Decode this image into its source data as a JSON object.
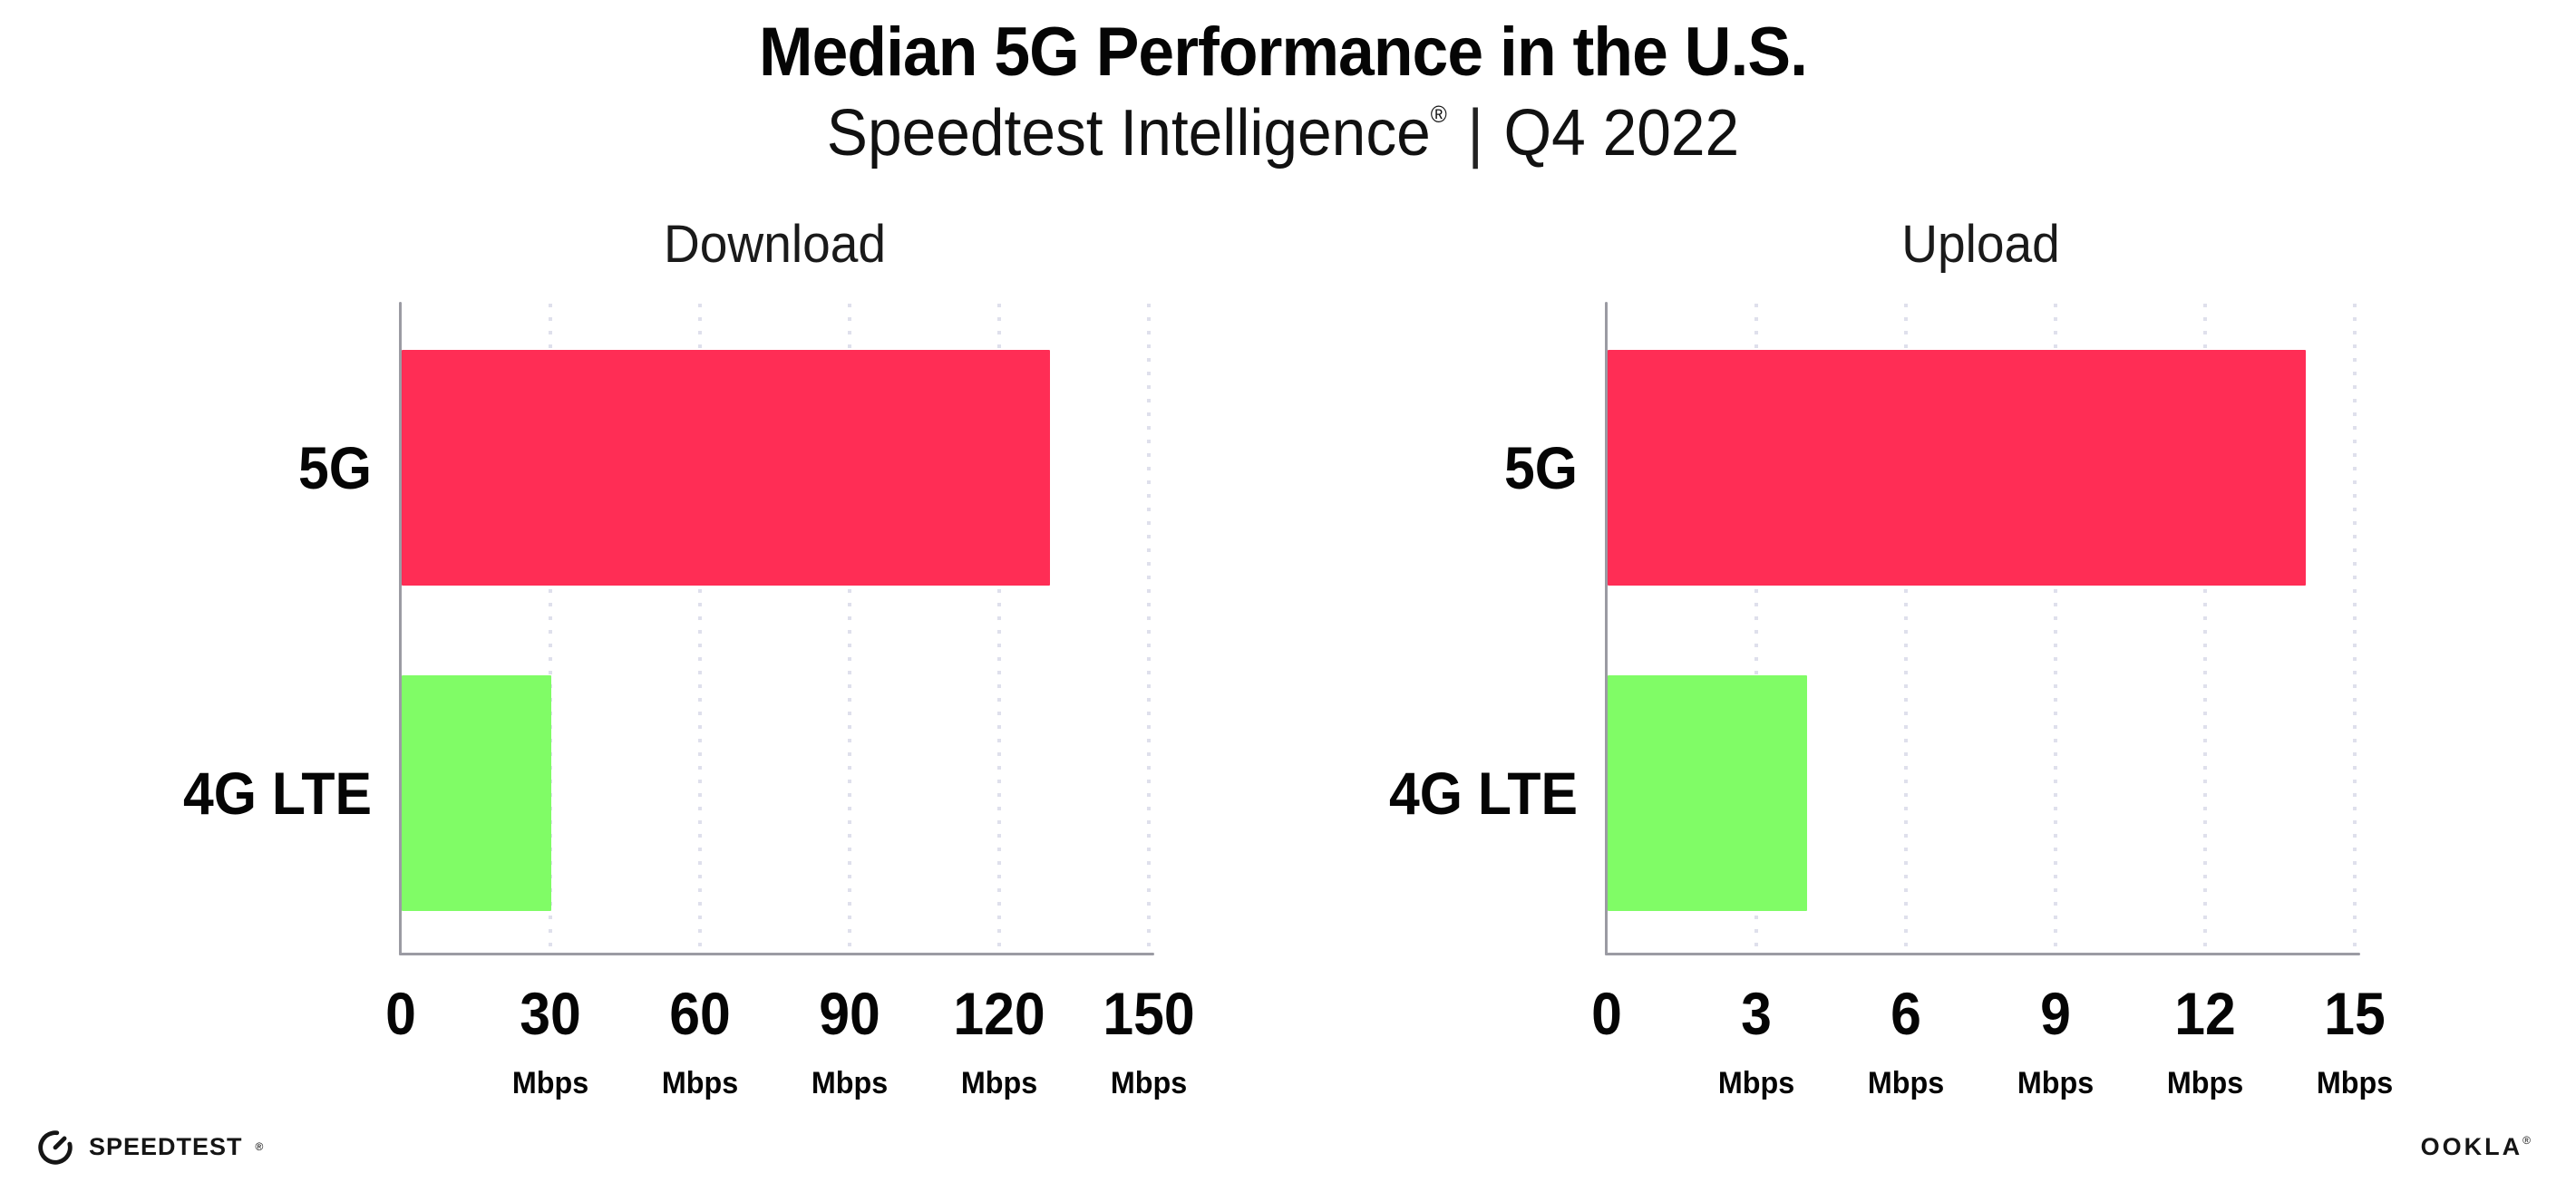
{
  "header": {
    "title": "Median 5G Performance in the U.S.",
    "subtitle_brand": "Speedtest Intelligence",
    "subtitle_reg": "®",
    "subtitle_separator": "|",
    "subtitle_period": "Q4 2022"
  },
  "chart_data": [
    {
      "type": "bar",
      "orientation": "horizontal",
      "title": "Download",
      "categories": [
        "5G",
        "4G LTE"
      ],
      "values": [
        130,
        30
      ],
      "unit": "Mbps",
      "xlabel": "",
      "ylabel": "",
      "xlim": [
        0,
        150
      ],
      "xticks": [
        0,
        30,
        60,
        90,
        120,
        150
      ],
      "grid": "vertical dotted",
      "legend": "none"
    },
    {
      "type": "bar",
      "orientation": "horizontal",
      "title": "Upload",
      "categories": [
        "5G",
        "4G LTE"
      ],
      "values": [
        14,
        4
      ],
      "unit": "Mbps",
      "xlabel": "",
      "ylabel": "",
      "xlim": [
        0,
        15
      ],
      "xticks": [
        0,
        3,
        6,
        9,
        12,
        15
      ],
      "grid": "vertical dotted",
      "legend": "none"
    }
  ],
  "colors": {
    "bar_5g": "#FF2D55",
    "bar_4g_lte": "#80FC66",
    "axis": "#9B9BA3",
    "gridline": "#DFE0EC",
    "text": "#000000"
  },
  "footer": {
    "speedtest_label": "SPEEDTEST",
    "speedtest_mark": "®",
    "ookla_label": "OOKLA",
    "ookla_mark": "®"
  }
}
